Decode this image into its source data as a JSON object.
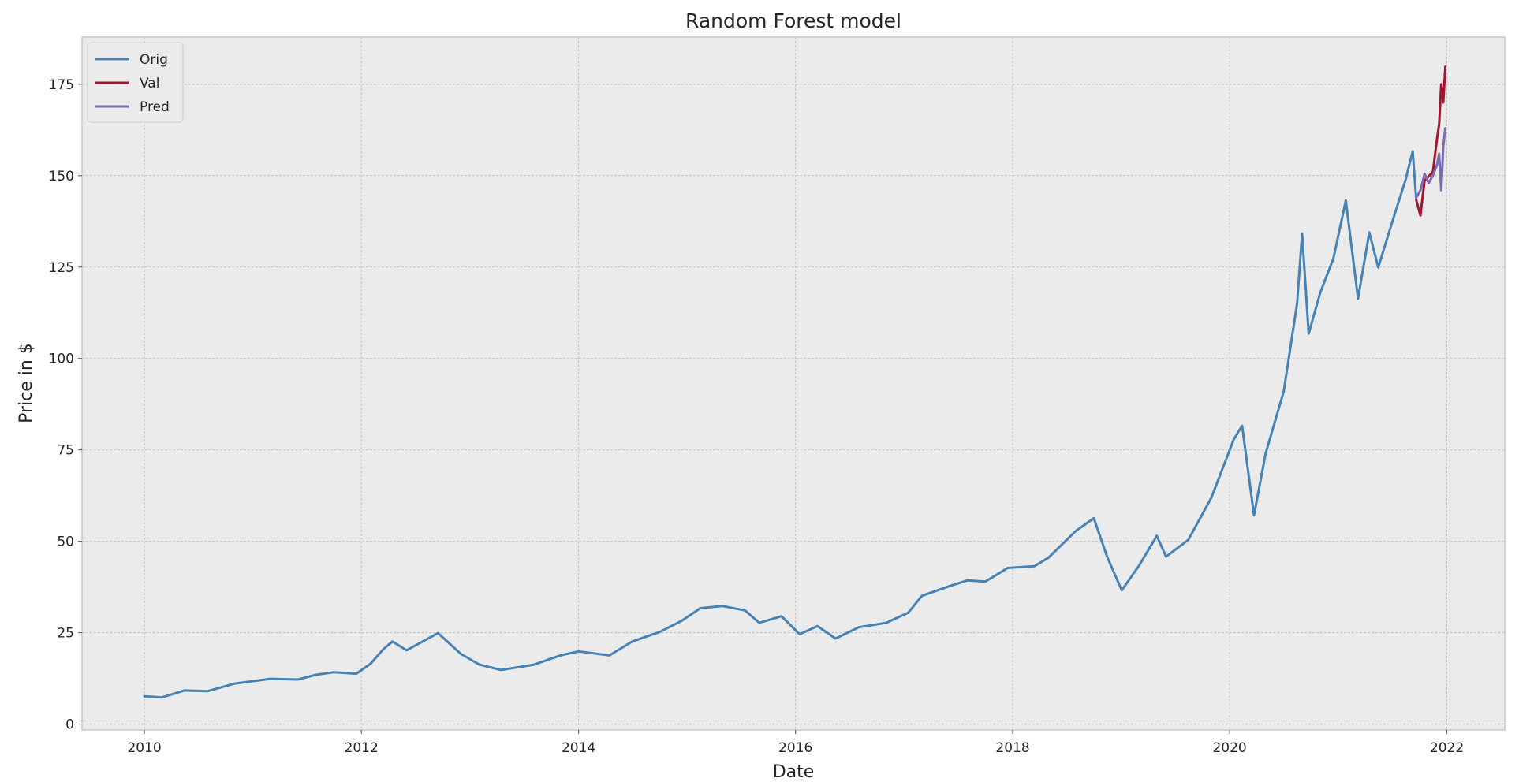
{
  "chart_data": {
    "type": "line",
    "title": "Random Forest model",
    "xlabel": "Date",
    "ylabel": "Price in $",
    "x_axis_type": "date",
    "xlim": [
      "2009-06-05",
      "2022-07-15"
    ],
    "ylim": [
      -1.6,
      187.9
    ],
    "x_ticks": [
      "2010",
      "2012",
      "2014",
      "2016",
      "2018",
      "2020",
      "2022"
    ],
    "y_ticks": [
      "0",
      "25",
      "50",
      "75",
      "100",
      "125",
      "150",
      "175"
    ],
    "grid": true,
    "legend_position": "top-left",
    "colors": {
      "background": "#ebebeb",
      "grid": "#c4c4c4",
      "frame": "#c8c8c8",
      "Orig": "#4682b4",
      "Val": "#a2142f",
      "Pred": "#7b6bb1"
    },
    "series": [
      {
        "name": "Orig",
        "color": "#4682b4",
        "points": [
          [
            "2010-01-01",
            7.6
          ],
          [
            "2010-03-01",
            7.3
          ],
          [
            "2010-05-15",
            9.2
          ],
          [
            "2010-08-01",
            9.0
          ],
          [
            "2010-11-01",
            11.1
          ],
          [
            "2011-03-01",
            12.4
          ],
          [
            "2011-06-01",
            12.2
          ],
          [
            "2011-08-01",
            13.5
          ],
          [
            "2011-10-01",
            14.2
          ],
          [
            "2011-12-15",
            13.8
          ],
          [
            "2012-02-01",
            16.5
          ],
          [
            "2012-03-15",
            20.5
          ],
          [
            "2012-04-15",
            22.6
          ],
          [
            "2012-06-01",
            20.2
          ],
          [
            "2012-09-15",
            24.9
          ],
          [
            "2012-12-01",
            19.2
          ],
          [
            "2013-02-01",
            16.3
          ],
          [
            "2013-04-15",
            14.8
          ],
          [
            "2013-08-01",
            16.2
          ],
          [
            "2013-11-01",
            18.8
          ],
          [
            "2014-01-01",
            19.9
          ],
          [
            "2014-04-15",
            18.8
          ],
          [
            "2014-07-01",
            22.6
          ],
          [
            "2014-10-01",
            25.2
          ],
          [
            "2014-12-15",
            28.3
          ],
          [
            "2015-02-15",
            31.7
          ],
          [
            "2015-05-01",
            32.3
          ],
          [
            "2015-07-15",
            31.1
          ],
          [
            "2015-09-01",
            27.7
          ],
          [
            "2015-11-15",
            29.5
          ],
          [
            "2016-01-15",
            24.6
          ],
          [
            "2016-03-15",
            26.8
          ],
          [
            "2016-05-15",
            23.4
          ],
          [
            "2016-08-01",
            26.5
          ],
          [
            "2016-11-01",
            27.7
          ],
          [
            "2017-01-15",
            30.5
          ],
          [
            "2017-03-01",
            35.1
          ],
          [
            "2017-06-01",
            37.7
          ],
          [
            "2017-08-01",
            39.3
          ],
          [
            "2017-10-01",
            39.0
          ],
          [
            "2017-12-15",
            42.7
          ],
          [
            "2018-03-15",
            43.2
          ],
          [
            "2018-05-01",
            45.5
          ],
          [
            "2018-08-01",
            52.8
          ],
          [
            "2018-10-01",
            56.3
          ],
          [
            "2018-11-15",
            45.7
          ],
          [
            "2019-01-03",
            36.6
          ],
          [
            "2019-03-01",
            43.2
          ],
          [
            "2019-05-01",
            51.5
          ],
          [
            "2019-06-01",
            45.8
          ],
          [
            "2019-08-15",
            50.4
          ],
          [
            "2019-11-01",
            62.0
          ],
          [
            "2020-01-15",
            77.9
          ],
          [
            "2020-02-12",
            81.6
          ],
          [
            "2020-03-23",
            57.1
          ],
          [
            "2020-05-01",
            74.0
          ],
          [
            "2020-07-01",
            91.0
          ],
          [
            "2020-08-15",
            115.0
          ],
          [
            "2020-09-01",
            134.2
          ],
          [
            "2020-09-23",
            106.8
          ],
          [
            "2020-11-01",
            118.0
          ],
          [
            "2020-12-15",
            127.3
          ],
          [
            "2021-01-26",
            143.2
          ],
          [
            "2021-03-08",
            116.4
          ],
          [
            "2021-04-15",
            134.5
          ],
          [
            "2021-05-15",
            124.9
          ],
          [
            "2021-07-01",
            137.3
          ],
          [
            "2021-08-15",
            148.9
          ],
          [
            "2021-09-08",
            156.7
          ],
          [
            "2021-09-20",
            143.3
          ]
        ]
      },
      {
        "name": "Val",
        "color": "#a2142f",
        "points": [
          [
            "2021-09-20",
            143.3
          ],
          [
            "2021-10-04",
            139.1
          ],
          [
            "2021-10-18",
            148.7
          ],
          [
            "2021-11-01",
            149.8
          ],
          [
            "2021-11-15",
            151.0
          ],
          [
            "2021-11-29",
            160.2
          ],
          [
            "2021-12-06",
            164.0
          ],
          [
            "2021-12-13",
            175.0
          ],
          [
            "2021-12-20",
            170.0
          ],
          [
            "2021-12-27",
            179.8
          ]
        ]
      },
      {
        "name": "Pred",
        "color": "#7b6bb1",
        "points": [
          [
            "2021-09-20",
            144.0
          ],
          [
            "2021-10-04",
            146.0
          ],
          [
            "2021-10-18",
            150.5
          ],
          [
            "2021-11-01",
            148.0
          ],
          [
            "2021-11-15",
            150.0
          ],
          [
            "2021-11-29",
            153.0
          ],
          [
            "2021-12-06",
            156.0
          ],
          [
            "2021-12-13",
            146.0
          ],
          [
            "2021-12-20",
            158.0
          ],
          [
            "2021-12-27",
            163.0
          ]
        ]
      }
    ]
  }
}
